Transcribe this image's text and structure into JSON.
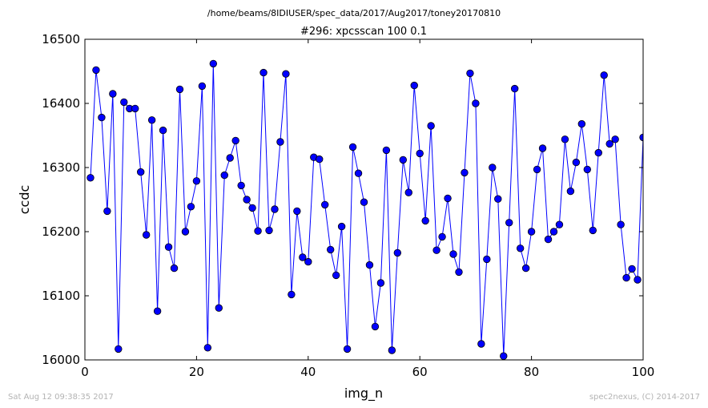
{
  "chart_data": {
    "type": "line",
    "suptitle": "/home/beams/8IDIUSER/spec_data/2017/Aug2017/toney20170810",
    "title": "#296: xpcsscan 100 0.1",
    "xlabel": "img_n",
    "ylabel": "ccdc",
    "xlim": [
      0,
      100
    ],
    "ylim": [
      16000,
      16500
    ],
    "xticks": [
      "0",
      "20",
      "40",
      "60",
      "80",
      "100"
    ],
    "yticks": [
      "16000",
      "16100",
      "16200",
      "16300",
      "16400",
      "16500"
    ],
    "grid": false,
    "line_color": "#0000ff",
    "marker": "circle",
    "series": [
      {
        "x": [
          1,
          2,
          3,
          4,
          5,
          6,
          7,
          8,
          9,
          10,
          11,
          12,
          13,
          14,
          15,
          16,
          17,
          18,
          19,
          20,
          21,
          22,
          23,
          24,
          25,
          26,
          27,
          28,
          29,
          30,
          31,
          32,
          33,
          34,
          35,
          36,
          37,
          38,
          39,
          40,
          41,
          42,
          43,
          44,
          45,
          46,
          47,
          48,
          49,
          50,
          51,
          52,
          53,
          54,
          55,
          56,
          57,
          58,
          59,
          60,
          61,
          62,
          63,
          64,
          65,
          66,
          67,
          68,
          69,
          70,
          71,
          72,
          73,
          74,
          75,
          76,
          77,
          78,
          79,
          80,
          81,
          82,
          83,
          84,
          85,
          86,
          87,
          88,
          89,
          90,
          91,
          92,
          93,
          94,
          95,
          96,
          97,
          98,
          99,
          100
        ],
        "y": [
          16284,
          16452,
          16378,
          16232,
          16415,
          16017,
          16402,
          16392,
          16392,
          16293,
          16195,
          16374,
          16076,
          16358,
          16176,
          16143,
          16422,
          16200,
          16239,
          16279,
          16427,
          16019,
          16462,
          16081,
          16288,
          16315,
          16342,
          16272,
          16250,
          16237,
          16201,
          16448,
          16202,
          16235,
          16340,
          16446,
          16102,
          16232,
          16160,
          16153,
          16316,
          16313,
          16242,
          16172,
          16132,
          16208,
          16017,
          16332,
          16291,
          16246,
          16148,
          16052,
          16120,
          16327,
          16015,
          16167,
          16312,
          16261,
          16428,
          16322,
          16217,
          16365,
          16171,
          16192,
          16252,
          16165,
          16137,
          16292,
          16447,
          16400,
          16025,
          16157,
          16300,
          16251,
          16006,
          16214,
          16423,
          16174,
          16143,
          16200,
          16297,
          16330,
          16188,
          16200,
          16211,
          16344,
          16263,
          16308,
          16368,
          16297,
          16202,
          16323,
          16444,
          16337,
          16344,
          16211,
          16128,
          16142,
          16125,
          16347
        ]
      }
    ]
  },
  "footer": {
    "timestamp": "Sat Aug 12 09:38:35 2017",
    "credit": "spec2nexus, (C) 2014-2017"
  }
}
